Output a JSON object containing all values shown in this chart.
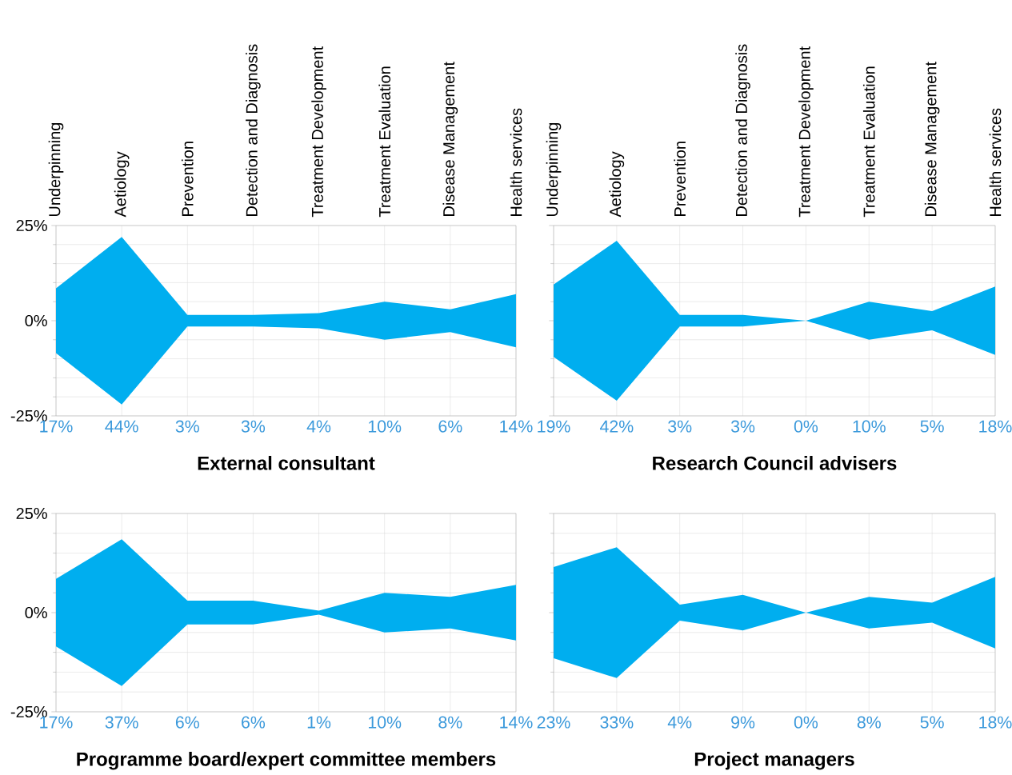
{
  "chart_data": [
    {
      "type": "area",
      "title": "External consultant",
      "categories": [
        "Underpinning",
        "Aetiology",
        "Prevention",
        "Detection and Diagnosis",
        "Treatment Development",
        "Treatment Evaluation",
        "Disease Management",
        "Health services"
      ],
      "series": [
        {
          "color": "#00aeef",
          "values": [
            8.5,
            22,
            1.5,
            1.5,
            2,
            5,
            3,
            7
          ]
        },
        {
          "color": "#00aeef",
          "values": [
            -8.5,
            -22,
            -1.5,
            -1.5,
            -2,
            -5,
            -3,
            -7
          ]
        }
      ],
      "annotations": [
        "17%",
        "44%",
        "3%",
        "3%",
        "4%",
        "10%",
        "6%",
        "14%"
      ],
      "ylim": [
        -25,
        25
      ],
      "yticks": [
        {
          "value": -25,
          "label": "-25%"
        },
        {
          "value": 0,
          "label": "0%"
        },
        {
          "value": 25,
          "label": "25%"
        }
      ],
      "grid": true
    },
    {
      "type": "area",
      "title": "Research Council advisers",
      "categories": [
        "Underpinning",
        "Aetiology",
        "Prevention",
        "Detection and Diagnosis",
        "Treatment Development",
        "Treatment Evaluation",
        "Disease Management",
        "Health services"
      ],
      "series": [
        {
          "color": "#00aeef",
          "values": [
            9.5,
            21,
            1.5,
            1.5,
            0,
            5,
            2.5,
            9
          ]
        },
        {
          "color": "#00aeef",
          "values": [
            -9.5,
            -21,
            -1.5,
            -1.5,
            0,
            -5,
            -2.5,
            -9
          ]
        }
      ],
      "annotations": [
        "19%",
        "42%",
        "3%",
        "3%",
        "0%",
        "10%",
        "5%",
        "18%"
      ],
      "ylim": [
        -25,
        25
      ],
      "yticks": [
        -25,
        0,
        25
      ],
      "grid": true,
      "tick_labels": "x"
    },
    {
      "type": "area",
      "title": "Programme board/expert committee members",
      "categories": [
        null,
        null,
        null,
        null,
        null,
        null,
        null,
        null
      ],
      "series": [
        {
          "color": "#00aeef",
          "values": [
            8.5,
            18.5,
            3,
            3,
            0.5,
            5,
            4,
            7
          ]
        },
        {
          "color": "#00aeef",
          "values": [
            -8.5,
            -18.5,
            -3,
            -3,
            -0.5,
            -5,
            -4,
            -7
          ]
        }
      ],
      "annotations": [
        "17%",
        "37%",
        "6%",
        "6%",
        "1%",
        "10%",
        "8%",
        "14%"
      ],
      "ylim": [
        -25,
        25
      ],
      "yticks": [
        {
          "value": -25,
          "label": "-25%"
        },
        {
          "value": 0,
          "label": "0%"
        },
        {
          "value": 25,
          "label": "25%"
        }
      ],
      "grid": true,
      "tick_labels": "y"
    },
    {
      "type": "area",
      "title": "Project managers",
      "categories": [
        null,
        null,
        null,
        null,
        null,
        null,
        null,
        null
      ],
      "series": [
        {
          "color": "#00aeef",
          "values": [
            11.5,
            16.5,
            2,
            4.5,
            0,
            4,
            2.5,
            9
          ]
        },
        {
          "color": "#00aeef",
          "values": [
            -11.5,
            -16.5,
            -2,
            -4.5,
            0,
            -4,
            -2.5,
            -9
          ]
        }
      ],
      "annotations": [
        "23%",
        "33%",
        "4%",
        "9%",
        "0%",
        "8%",
        "5%",
        "18%"
      ],
      "ylim": [
        -25,
        25
      ],
      "yticks": [
        -25,
        0,
        25
      ],
      "grid": true,
      "tick_labels": false
    }
  ]
}
